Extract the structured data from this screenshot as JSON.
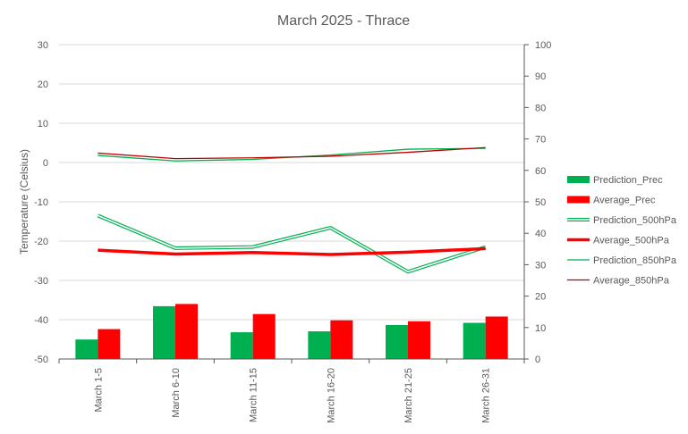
{
  "chart_data": {
    "type": "bar",
    "title": "March 2025 - Thrace",
    "ylabel": "Temperature (Celsius)",
    "ylabel_right": "",
    "categories": [
      "March 1-5",
      "March 6-10",
      "March 11-15",
      "March 16-20",
      "March 21-25",
      "March 26-31"
    ],
    "y_left": {
      "min": -50,
      "max": 30,
      "step": 10,
      "ticks": [
        "30",
        "20",
        "10",
        "0",
        "-10",
        "-20",
        "-30",
        "-40",
        "-50"
      ]
    },
    "y_right": {
      "min": 0,
      "max": 100,
      "step": 10,
      "ticks": [
        "100",
        "90",
        "80",
        "70",
        "60",
        "50",
        "40",
        "30",
        "20",
        "10",
        "0"
      ]
    },
    "grid": "horizontal",
    "legend_position": "right",
    "series": [
      {
        "name": "Prediction_Prec",
        "type": "bar",
        "axis": "right",
        "color": "#00b050",
        "values": [
          6.2,
          16.8,
          8.5,
          8.8,
          10.8,
          11.5
        ]
      },
      {
        "name": "Average_Prec",
        "type": "bar",
        "axis": "right",
        "color": "#ff0000",
        "values": [
          9.5,
          17.5,
          14.3,
          12.3,
          12.0,
          13.5
        ]
      },
      {
        "name": "Prediction_500hPa",
        "type": "line",
        "axis": "left",
        "style": "double",
        "color": "#00b050",
        "values": [
          -13.5,
          -21.8,
          -21.5,
          -16.6,
          -27.8,
          -21.5
        ]
      },
      {
        "name": "Average_500hPa",
        "type": "line",
        "axis": "left",
        "style": "thick",
        "color": "#ff0000",
        "values": [
          -22.3,
          -23.3,
          -22.9,
          -23.4,
          -22.8,
          -21.9
        ]
      },
      {
        "name": "Prediction_850hPa",
        "type": "line",
        "axis": "left",
        "style": "thin",
        "color": "#00b050",
        "values": [
          1.8,
          0.4,
          0.8,
          1.9,
          3.4,
          3.6
        ]
      },
      {
        "name": "Average_850hPa",
        "type": "line",
        "axis": "left",
        "style": "thin",
        "color": "#c00000",
        "values": [
          2.4,
          1.0,
          1.2,
          1.6,
          2.6,
          3.8
        ]
      }
    ]
  }
}
